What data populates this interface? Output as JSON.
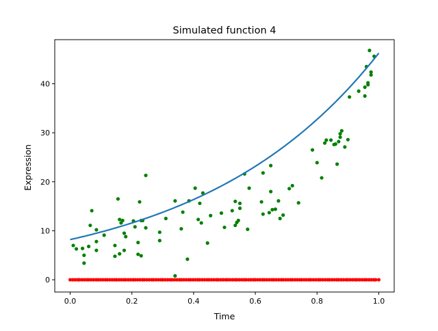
{
  "chart_data": {
    "type": "scatter",
    "title": "Simulated function 4",
    "xlabel": "Time",
    "ylabel": "Expression",
    "xlim": [
      -0.05,
      1.05
    ],
    "ylim": [
      -2.5,
      49
    ],
    "xticks": [
      "0.0",
      "0.2",
      "0.4",
      "0.6",
      "0.8",
      "1.0"
    ],
    "xtick_values": [
      0.0,
      0.2,
      0.4,
      0.6,
      0.8,
      1.0
    ],
    "yticks": [
      "0",
      "10",
      "20",
      "30",
      "40"
    ],
    "ytick_values": [
      0,
      10,
      20,
      30,
      40
    ],
    "grid": false,
    "legend": "none",
    "series": [
      {
        "kind": "line",
        "color": "#1f77b4",
        "formula": "y = 8.2 * exp(1.73 * x)",
        "x": [
          0.0,
          0.1,
          0.2,
          0.3,
          0.4,
          0.5,
          0.6,
          0.7,
          0.8,
          0.9,
          1.0
        ],
        "y": [
          8.2,
          9.7,
          11.6,
          13.8,
          16.4,
          19.4,
          23.1,
          27.5,
          32.7,
          38.9,
          46.2
        ]
      },
      {
        "kind": "scatter",
        "color": "#008000",
        "points": [
          [
            0.01,
            7.0
          ],
          [
            0.02,
            6.3
          ],
          [
            0.04,
            6.4
          ],
          [
            0.045,
            3.4
          ],
          [
            0.045,
            5.0
          ],
          [
            0.06,
            6.8
          ],
          [
            0.065,
            11.1
          ],
          [
            0.07,
            14.1
          ],
          [
            0.085,
            10.2
          ],
          [
            0.085,
            6.0
          ],
          [
            0.085,
            7.8
          ],
          [
            0.11,
            9.1
          ],
          [
            0.145,
            7.0
          ],
          [
            0.145,
            4.8
          ],
          [
            0.155,
            16.5
          ],
          [
            0.16,
            12.3
          ],
          [
            0.16,
            5.3
          ],
          [
            0.165,
            11.6
          ],
          [
            0.17,
            12.1
          ],
          [
            0.175,
            9.5
          ],
          [
            0.175,
            6.0
          ],
          [
            0.18,
            8.8
          ],
          [
            0.205,
            12.0
          ],
          [
            0.21,
            10.8
          ],
          [
            0.22,
            7.6
          ],
          [
            0.22,
            5.2
          ],
          [
            0.225,
            15.9
          ],
          [
            0.23,
            12.1
          ],
          [
            0.235,
            12.1
          ],
          [
            0.23,
            4.9
          ],
          [
            0.245,
            10.6
          ],
          [
            0.245,
            21.3
          ],
          [
            0.29,
            8.0
          ],
          [
            0.29,
            9.7
          ],
          [
            0.31,
            12.5
          ],
          [
            0.34,
            0.8
          ],
          [
            0.34,
            16.1
          ],
          [
            0.36,
            10.4
          ],
          [
            0.365,
            13.8
          ],
          [
            0.38,
            4.2
          ],
          [
            0.385,
            16.1
          ],
          [
            0.405,
            18.7
          ],
          [
            0.415,
            12.3
          ],
          [
            0.42,
            15.6
          ],
          [
            0.425,
            11.6
          ],
          [
            0.43,
            17.7
          ],
          [
            0.445,
            7.5
          ],
          [
            0.455,
            13.1
          ],
          [
            0.49,
            13.6
          ],
          [
            0.5,
            10.7
          ],
          [
            0.525,
            14.1
          ],
          [
            0.535,
            11.1
          ],
          [
            0.535,
            16.0
          ],
          [
            0.54,
            11.7
          ],
          [
            0.545,
            12.1
          ],
          [
            0.55,
            15.6
          ],
          [
            0.55,
            14.6
          ],
          [
            0.565,
            21.6
          ],
          [
            0.575,
            10.3
          ],
          [
            0.58,
            18.7
          ],
          [
            0.62,
            15.9
          ],
          [
            0.625,
            13.4
          ],
          [
            0.625,
            21.8
          ],
          [
            0.645,
            13.7
          ],
          [
            0.65,
            18.0
          ],
          [
            0.65,
            23.3
          ],
          [
            0.655,
            14.3
          ],
          [
            0.665,
            14.4
          ],
          [
            0.675,
            16.1
          ],
          [
            0.68,
            12.5
          ],
          [
            0.69,
            13.2
          ],
          [
            0.71,
            18.6
          ],
          [
            0.72,
            19.2
          ],
          [
            0.74,
            15.7
          ],
          [
            0.8,
            23.9
          ],
          [
            0.815,
            20.8
          ],
          [
            0.825,
            27.9
          ],
          [
            0.83,
            28.5
          ],
          [
            0.845,
            28.5
          ],
          [
            0.855,
            27.6
          ],
          [
            0.865,
            23.6
          ],
          [
            0.87,
            28.2
          ],
          [
            0.875,
            29.8
          ],
          [
            0.875,
            29.1
          ],
          [
            0.88,
            30.4
          ],
          [
            0.89,
            27.1
          ],
          [
            0.9,
            28.6
          ],
          [
            0.905,
            37.3
          ],
          [
            0.935,
            38.5
          ],
          [
            0.955,
            39.3
          ],
          [
            0.955,
            37.5
          ],
          [
            0.96,
            43.5
          ],
          [
            0.965,
            40.2
          ],
          [
            0.97,
            46.8
          ],
          [
            0.975,
            41.8
          ],
          [
            0.975,
            42.4
          ],
          [
            0.985,
            45.6
          ],
          [
            0.965,
            39.8
          ],
          [
            0.86,
            27.7
          ],
          [
            0.785,
            26.5
          ]
        ]
      },
      {
        "kind": "scatter",
        "color": "#ff0000",
        "y_constant": 0,
        "x": [
          0.0,
          0.008,
          0.016,
          0.024,
          0.03,
          0.038,
          0.046,
          0.054,
          0.06,
          0.068,
          0.076,
          0.084,
          0.09,
          0.098,
          0.106,
          0.114,
          0.12,
          0.128,
          0.136,
          0.144,
          0.15,
          0.158,
          0.166,
          0.174,
          0.18,
          0.188,
          0.196,
          0.204,
          0.21,
          0.218,
          0.226,
          0.234,
          0.24,
          0.248,
          0.256,
          0.264,
          0.27,
          0.278,
          0.286,
          0.294,
          0.3,
          0.308,
          0.316,
          0.324,
          0.33,
          0.338,
          0.346,
          0.354,
          0.36,
          0.368,
          0.376,
          0.384,
          0.39,
          0.398,
          0.406,
          0.414,
          0.42,
          0.428,
          0.436,
          0.444,
          0.45,
          0.458,
          0.466,
          0.474,
          0.48,
          0.488,
          0.496,
          0.504,
          0.51,
          0.518,
          0.526,
          0.534,
          0.54,
          0.548,
          0.556,
          0.564,
          0.57,
          0.578,
          0.586,
          0.594,
          0.6,
          0.608,
          0.616,
          0.624,
          0.63,
          0.638,
          0.646,
          0.654,
          0.66,
          0.668,
          0.676,
          0.684,
          0.69,
          0.698,
          0.706,
          0.714,
          0.72,
          0.728,
          0.736,
          0.744,
          0.75,
          0.758,
          0.766,
          0.774,
          0.78,
          0.788,
          0.796,
          0.804,
          0.81,
          0.818,
          0.826,
          0.834,
          0.84,
          0.848,
          0.856,
          0.864,
          0.87,
          0.878,
          0.886,
          0.894,
          0.9,
          0.908,
          0.916,
          0.924,
          0.93,
          0.938,
          0.946,
          0.954,
          0.96,
          0.968,
          0.976,
          0.984,
          0.99,
          1.0
        ]
      }
    ]
  }
}
